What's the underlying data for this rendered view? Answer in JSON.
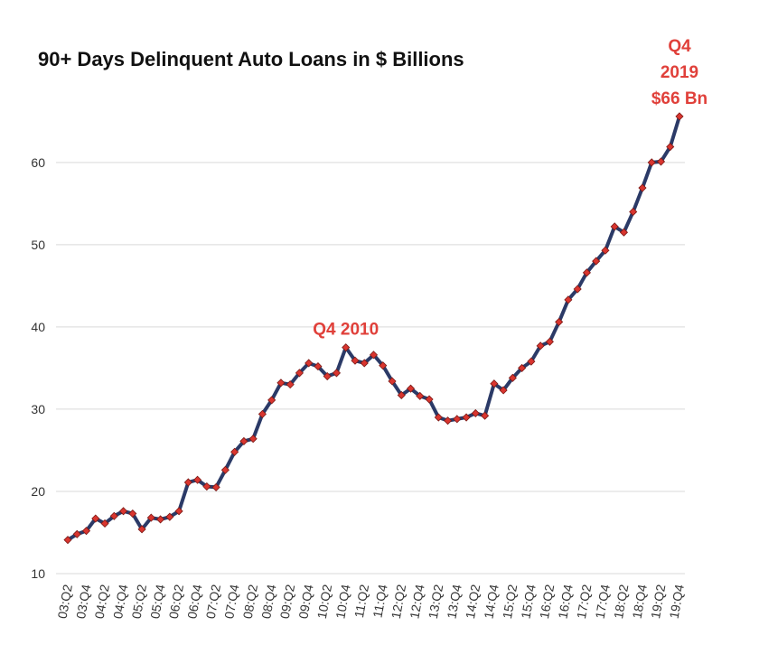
{
  "chart_data": {
    "type": "line",
    "title": "90+ Days Delinquent Auto Loans in $ Billions",
    "categories": [
      "03:Q2",
      null,
      "03:Q4",
      null,
      "04:Q2",
      null,
      "04:Q4",
      null,
      "05:Q2",
      null,
      "05:Q4",
      null,
      "06:Q2",
      null,
      "06:Q4",
      null,
      "07:Q2",
      null,
      "07:Q4",
      null,
      "08:Q2",
      null,
      "08:Q4",
      null,
      "09:Q2",
      null,
      "09:Q4",
      null,
      "10:Q2",
      null,
      "10:Q4",
      null,
      "11:Q2",
      null,
      "11:Q4",
      null,
      "12:Q2",
      null,
      "12:Q4",
      null,
      "13:Q2",
      null,
      "13:Q4",
      null,
      "14:Q2",
      null,
      "14:Q4",
      null,
      "15:Q2",
      null,
      "15:Q4",
      null,
      "16:Q2",
      null,
      "16:Q4",
      null,
      "17:Q2",
      null,
      "17:Q4",
      null,
      "18:Q2",
      null,
      "18:Q4",
      null,
      "19:Q2",
      null,
      "19:Q4"
    ],
    "series": [
      {
        "name": "90+ Days Delinquent Auto Loans",
        "color": "#2b3a67",
        "marker_color": "#d9352f",
        "values": [
          14.1,
          14.8,
          15.2,
          16.7,
          16.1,
          17.0,
          17.6,
          17.3,
          15.4,
          16.8,
          16.6,
          16.9,
          17.6,
          21.1,
          21.4,
          20.6,
          20.5,
          22.6,
          24.8,
          26.1,
          26.4,
          29.4,
          31.1,
          33.2,
          33.0,
          34.4,
          35.6,
          35.2,
          34.0,
          34.4,
          37.5,
          35.9,
          35.6,
          36.6,
          35.3,
          33.4,
          31.7,
          32.5,
          31.6,
          31.2,
          29.0,
          28.6,
          28.8,
          29.0,
          29.5,
          29.2,
          33.1,
          32.3,
          33.8,
          35.0,
          35.8,
          37.7,
          38.2,
          40.6,
          43.3,
          44.6,
          46.6,
          48.0,
          49.3,
          52.2,
          51.5,
          54.0,
          56.9,
          60.0,
          60.1,
          61.9,
          65.6
        ]
      }
    ],
    "ylim": [
      10,
      68
    ],
    "yticks": [
      10,
      20,
      30,
      40,
      50,
      60
    ],
    "grid": true,
    "annotations": [
      {
        "text": [
          "Q4 2010"
        ],
        "x": "10:Q4"
      },
      {
        "text": [
          "Q4",
          "2019",
          "$66 Bn"
        ],
        "x": "19:Q4"
      }
    ]
  }
}
